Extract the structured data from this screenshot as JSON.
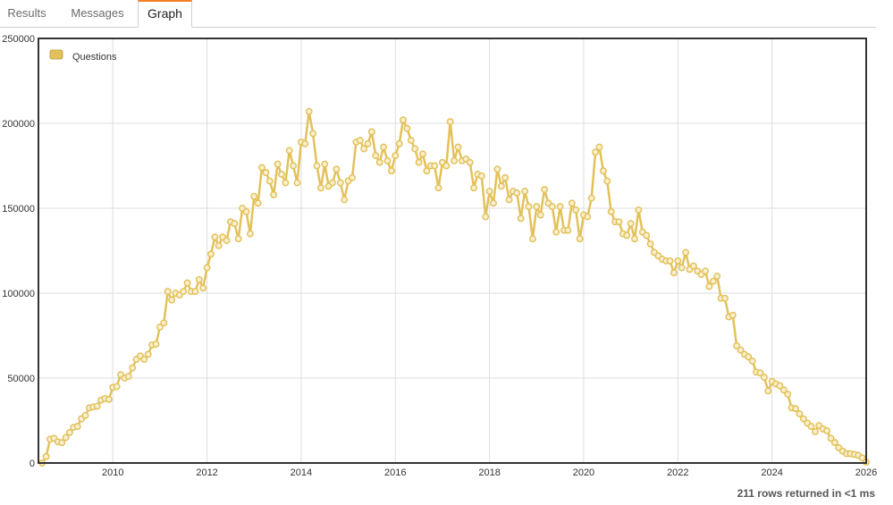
{
  "tabs": [
    {
      "label": "Results",
      "active": false
    },
    {
      "label": "Messages",
      "active": false
    },
    {
      "label": "Graph",
      "active": true
    }
  ],
  "status": "211 rows returned in <1 ms",
  "colors": {
    "series": "#e3c15a",
    "point_fill": "#f8f0cf",
    "tab_accent": "#f48024",
    "grid": "#dddddd",
    "frame": "#333333"
  },
  "chart_data": {
    "type": "line",
    "title": "",
    "xlabel": "",
    "ylabel": "",
    "legend_position": "top-left",
    "grid": true,
    "xlim": [
      2008.42,
      2026.0
    ],
    "ylim": [
      0,
      250000
    ],
    "x_ticks": [
      "2010",
      "2012",
      "2014",
      "2016",
      "2018",
      "2020",
      "2022",
      "2024",
      "2026"
    ],
    "y_ticks": [
      "0",
      "50000",
      "100000",
      "150000",
      "200000",
      "250000"
    ],
    "series": [
      {
        "name": "Questions",
        "start": "2008-07",
        "values": [
          0,
          3800,
          14000,
          14500,
          12500,
          12000,
          15000,
          18000,
          21000,
          21500,
          26000,
          28000,
          32500,
          33000,
          33500,
          37000,
          38000,
          37500,
          44500,
          45000,
          52000,
          50000,
          51000,
          56000,
          61000,
          63000,
          61000,
          64000,
          69500,
          70000,
          80000,
          82500,
          101000,
          96000,
          100000,
          99000,
          101000,
          106000,
          101000,
          101000,
          108000,
          103000,
          115000,
          123000,
          133000,
          128000,
          133000,
          131000,
          142000,
          141000,
          132000,
          150000,
          148000,
          135000,
          157000,
          153000,
          174000,
          171000,
          166000,
          158000,
          176000,
          170000,
          165000,
          184000,
          175000,
          165000,
          189000,
          188000,
          207000,
          194000,
          175000,
          162000,
          176000,
          163000,
          165000,
          173000,
          165000,
          155000,
          166000,
          168000,
          189000,
          190000,
          185000,
          188000,
          195000,
          181000,
          177000,
          186000,
          178000,
          172000,
          181000,
          188000,
          202000,
          197000,
          190000,
          185000,
          177000,
          182000,
          172000,
          175000,
          175000,
          162000,
          177000,
          175000,
          201000,
          178000,
          186000,
          178000,
          179000,
          177000,
          162000,
          170000,
          169000,
          145000,
          160000,
          153000,
          173000,
          163000,
          168000,
          155000,
          160000,
          159000,
          144000,
          160000,
          151000,
          132000,
          151000,
          146000,
          161000,
          153000,
          151000,
          136000,
          151000,
          137000,
          137000,
          153000,
          149000,
          132000,
          146000,
          145000,
          156000,
          183000,
          186000,
          172000,
          166000,
          148000,
          142000,
          142000,
          135000,
          134000,
          141000,
          132000,
          149000,
          136000,
          134000,
          129000,
          124000,
          122000,
          120000,
          119000,
          119000,
          112000,
          119000,
          115000,
          124000,
          114000,
          116000,
          113000,
          111000,
          113000,
          104000,
          107000,
          110000,
          97000,
          97000,
          86000,
          87000,
          69000,
          66500,
          64000,
          62500,
          60000,
          53500,
          53000,
          50500,
          42500,
          48000,
          46500,
          45500,
          43000,
          40500,
          32500,
          32000,
          29000,
          26000,
          23500,
          21500,
          18500,
          22000,
          20000,
          19000,
          14500,
          12000,
          9000,
          7000,
          5500,
          5500,
          5000,
          4500,
          3000,
          500
        ]
      }
    ]
  }
}
